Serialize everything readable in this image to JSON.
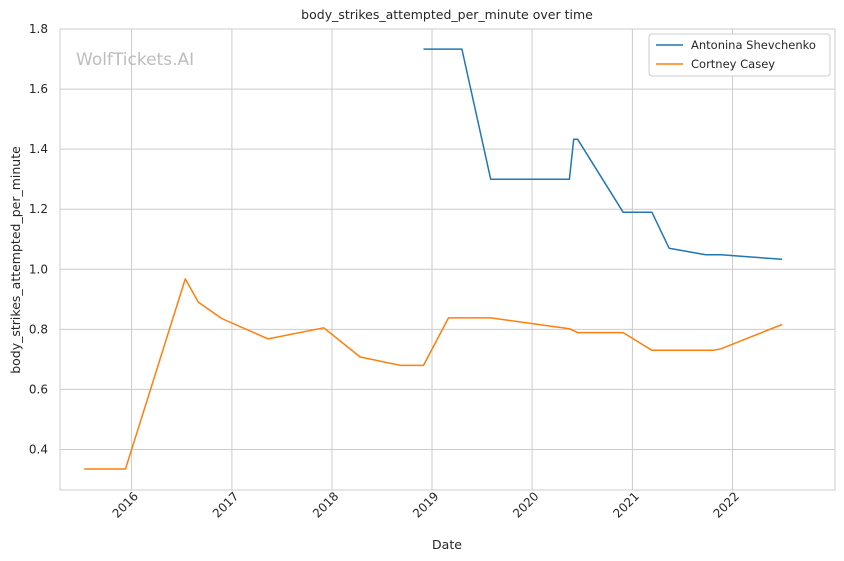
{
  "chart_data": {
    "type": "line",
    "title": "body_strikes_attempted_per_minute over time",
    "xlabel": "Date",
    "ylabel": "body_strikes_attempted_per_minute",
    "watermark": "WolfTickets.AI",
    "xlim": [
      "2015-04-15",
      "2023-01-10"
    ],
    "ylim": [
      0.265,
      1.8
    ],
    "x_ticks": [
      "2016",
      "2017",
      "2018",
      "2019",
      "2020",
      "2021",
      "2022"
    ],
    "y_ticks": [
      "0.4",
      "0.6",
      "0.8",
      "1.0",
      "1.2",
      "1.4",
      "1.6",
      "1.8"
    ],
    "grid": true,
    "legend_position": "top-right",
    "series": [
      {
        "name": "Antonina Shevchenko",
        "color": "#1f77b4",
        "points": [
          [
            "2018-12-01",
            1.733
          ],
          [
            "2019-04-20",
            1.733
          ],
          [
            "2019-08-03",
            1.3
          ],
          [
            "2020-05-16",
            1.3
          ],
          [
            "2020-06-01",
            1.433
          ],
          [
            "2020-06-15",
            1.433
          ],
          [
            "2020-11-28",
            1.19
          ],
          [
            "2021-03-13",
            1.19
          ],
          [
            "2021-05-15",
            1.07
          ],
          [
            "2021-09-25",
            1.048
          ],
          [
            "2021-11-20",
            1.048
          ],
          [
            "2022-07-01",
            1.033
          ]
        ]
      },
      {
        "name": "Cortney Casey",
        "color": "#ff7f0e",
        "points": [
          [
            "2015-07-12",
            0.335
          ],
          [
            "2015-12-10",
            0.335
          ],
          [
            "2016-07-15",
            0.968
          ],
          [
            "2016-09-01",
            0.89
          ],
          [
            "2016-11-25",
            0.836
          ],
          [
            "2017-05-13",
            0.768
          ],
          [
            "2017-12-02",
            0.805
          ],
          [
            "2018-04-14",
            0.708
          ],
          [
            "2018-09-08",
            0.68
          ],
          [
            "2018-12-01",
            0.68
          ],
          [
            "2019-03-02",
            0.838
          ],
          [
            "2019-08-03",
            0.838
          ],
          [
            "2020-05-16",
            0.802
          ],
          [
            "2020-06-15",
            0.789
          ],
          [
            "2020-11-28",
            0.789
          ],
          [
            "2021-03-13",
            0.73
          ],
          [
            "2021-10-23",
            0.73
          ],
          [
            "2021-11-20",
            0.735
          ],
          [
            "2022-07-01",
            0.816
          ]
        ]
      }
    ]
  }
}
